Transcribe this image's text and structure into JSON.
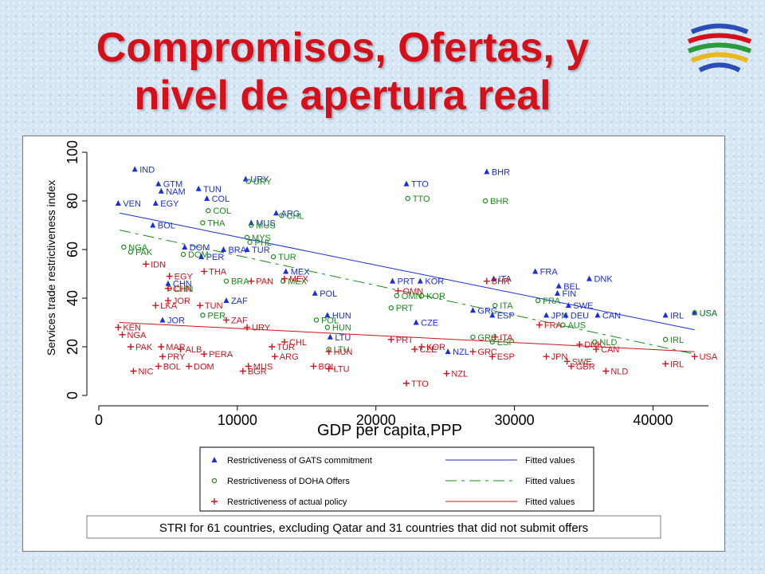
{
  "slide": {
    "title_line1": "Compromisos, Ofertas, y",
    "title_line2": "nivel de apertura real",
    "logo_icon": "wto-logo-icon"
  },
  "colors": {
    "title": "#d4101a",
    "gats": "#1a2fd6",
    "doha": "#1a8a1a",
    "actual": "#d4101a"
  },
  "chart_data": {
    "type": "scatter",
    "xlabel": "GDP per capita,PPP",
    "ylabel": "Services trade restrictiveness index",
    "xlim": [
      0,
      44000
    ],
    "ylim": [
      0,
      100
    ],
    "xticks": [
      0,
      10000,
      20000,
      30000,
      40000
    ],
    "yticks": [
      0,
      20,
      40,
      60,
      80,
      100
    ],
    "note": "STRI for 61 countries, excluding Qatar and 31 countries that did not submit offers",
    "legend": [
      {
        "series": "gats",
        "label": "Restrictiveness of GATS commitment",
        "fit_label": "Fitted values"
      },
      {
        "series": "doha",
        "label": "Restrictiveness of DOHA Offers",
        "fit_label": "Fitted values"
      },
      {
        "series": "actual",
        "label": "Restrictiveness of actual policy",
        "fit_label": "Fitted values"
      }
    ],
    "series": [
      {
        "name": "Restrictiveness of GATS commitment",
        "key": "gats",
        "marker": "triangle",
        "fit": [
          [
            1500,
            75
          ],
          [
            43000,
            27
          ]
        ],
        "points": [
          {
            "label": "IND",
            "x": 2600,
            "y": 93
          },
          {
            "label": "GTM",
            "x": 4300,
            "y": 87
          },
          {
            "label": "NAM",
            "x": 4500,
            "y": 84
          },
          {
            "label": "TUN",
            "x": 7200,
            "y": 85
          },
          {
            "label": "VEN",
            "x": 1400,
            "y": 79
          },
          {
            "label": "EGY",
            "x": 4100,
            "y": 79
          },
          {
            "label": "COL",
            "x": 7800,
            "y": 81
          },
          {
            "label": "BOL",
            "x": 3900,
            "y": 70
          },
          {
            "label": "DOM",
            "x": 6200,
            "y": 61
          },
          {
            "label": "PER",
            "x": 7400,
            "y": 57
          },
          {
            "label": "BRA",
            "x": 9000,
            "y": 60
          },
          {
            "label": "TUR",
            "x": 10700,
            "y": 60
          },
          {
            "label": "MUS",
            "x": 11000,
            "y": 71
          },
          {
            "label": "URY",
            "x": 10600,
            "y": 89
          },
          {
            "label": "ARG",
            "x": 12800,
            "y": 75
          },
          {
            "label": "MEX",
            "x": 13500,
            "y": 51
          },
          {
            "label": "POL",
            "x": 15600,
            "y": 42
          },
          {
            "label": "HUN",
            "x": 16500,
            "y": 33
          },
          {
            "label": "LTU",
            "x": 16700,
            "y": 24
          },
          {
            "label": "ZAF",
            "x": 9200,
            "y": 39
          },
          {
            "label": "CHN",
            "x": 5000,
            "y": 46
          },
          {
            "label": "JOR",
            "x": 4600,
            "y": 31
          },
          {
            "label": "TTO",
            "x": 22200,
            "y": 87
          },
          {
            "label": "PRT",
            "x": 21200,
            "y": 47
          },
          {
            "label": "KOR",
            "x": 23200,
            "y": 47
          },
          {
            "label": "CZE",
            "x": 22900,
            "y": 30
          },
          {
            "label": "GRC",
            "x": 27000,
            "y": 35
          },
          {
            "label": "NZL",
            "x": 25200,
            "y": 18
          },
          {
            "label": "BHR",
            "x": 28000,
            "y": 92
          },
          {
            "label": "ITA",
            "x": 28500,
            "y": 48
          },
          {
            "label": "ESP",
            "x": 28400,
            "y": 33
          },
          {
            "label": "FRA",
            "x": 31500,
            "y": 51
          },
          {
            "label": "BEL",
            "x": 33200,
            "y": 45
          },
          {
            "label": "FIN",
            "x": 33100,
            "y": 42
          },
          {
            "label": "DNK",
            "x": 35400,
            "y": 48
          },
          {
            "label": "JPN",
            "x": 32300,
            "y": 33
          },
          {
            "label": "SWE",
            "x": 33900,
            "y": 37
          },
          {
            "label": "DEU",
            "x": 33700,
            "y": 33
          },
          {
            "label": "CAN",
            "x": 36000,
            "y": 33
          },
          {
            "label": "IRL",
            "x": 40900,
            "y": 33
          },
          {
            "label": "USA",
            "x": 43000,
            "y": 34
          }
        ]
      },
      {
        "name": "Restrictiveness of DOHA Offers",
        "key": "doha",
        "marker": "circle",
        "fit": [
          [
            1500,
            68
          ],
          [
            43000,
            17
          ]
        ],
        "points": [
          {
            "label": "URY",
            "x": 10800,
            "y": 88
          },
          {
            "label": "COL",
            "x": 7900,
            "y": 76
          },
          {
            "label": "THA",
            "x": 7500,
            "y": 71
          },
          {
            "label": "CHL",
            "x": 13200,
            "y": 74
          },
          {
            "label": "MUS",
            "x": 11000,
            "y": 70
          },
          {
            "label": "MYS",
            "x": 10700,
            "y": 65
          },
          {
            "label": "PHL",
            "x": 10900,
            "y": 63
          },
          {
            "label": "NGA",
            "x": 1800,
            "y": 61
          },
          {
            "label": "PAK",
            "x": 2300,
            "y": 59
          },
          {
            "label": "DOM",
            "x": 6100,
            "y": 58
          },
          {
            "label": "TUR",
            "x": 12600,
            "y": 57
          },
          {
            "label": "BRA",
            "x": 9200,
            "y": 47
          },
          {
            "label": "MEX",
            "x": 13300,
            "y": 47
          },
          {
            "label": "CHN",
            "x": 5100,
            "y": 44
          },
          {
            "label": "PER",
            "x": 7500,
            "y": 33
          },
          {
            "label": "POL",
            "x": 15700,
            "y": 31
          },
          {
            "label": "HUN",
            "x": 16500,
            "y": 28
          },
          {
            "label": "LTU",
            "x": 16600,
            "y": 19
          },
          {
            "label": "TTO",
            "x": 22300,
            "y": 81
          },
          {
            "label": "OMN",
            "x": 21500,
            "y": 41
          },
          {
            "label": "KOR",
            "x": 23300,
            "y": 41
          },
          {
            "label": "PRT",
            "x": 21100,
            "y": 36
          },
          {
            "label": "GRC",
            "x": 27000,
            "y": 24
          },
          {
            "label": "ESP",
            "x": 28400,
            "y": 22
          },
          {
            "label": "BHR",
            "x": 27900,
            "y": 80
          },
          {
            "label": "ITA",
            "x": 28600,
            "y": 37
          },
          {
            "label": "FRA",
            "x": 31700,
            "y": 39
          },
          {
            "label": "NLD",
            "x": 35800,
            "y": 22
          },
          {
            "label": "AUS",
            "x": 33500,
            "y": 29
          },
          {
            "label": "IRL",
            "x": 40900,
            "y": 23
          },
          {
            "label": "USA",
            "x": 43000,
            "y": 34
          }
        ]
      },
      {
        "name": "Restrictiveness of actual policy",
        "key": "actual",
        "marker": "plus",
        "fit": [
          [
            1500,
            30
          ],
          [
            43000,
            18
          ]
        ],
        "points": [
          {
            "label": "IDN",
            "x": 3400,
            "y": 54
          },
          {
            "label": "THA",
            "x": 7600,
            "y": 51
          },
          {
            "label": "EGY",
            "x": 5100,
            "y": 49
          },
          {
            "label": "PAN",
            "x": 11000,
            "y": 47
          },
          {
            "label": "MEX",
            "x": 13400,
            "y": 48
          },
          {
            "label": "CHN",
            "x": 5000,
            "y": 44
          },
          {
            "label": "JOR",
            "x": 5000,
            "y": 39
          },
          {
            "label": "LKA",
            "x": 4100,
            "y": 37
          },
          {
            "label": "TUN",
            "x": 7300,
            "y": 37
          },
          {
            "label": "ZAF",
            "x": 9200,
            "y": 31
          },
          {
            "label": "KEN",
            "x": 1400,
            "y": 28
          },
          {
            "label": "NGA",
            "x": 1700,
            "y": 25
          },
          {
            "label": "URY",
            "x": 10700,
            "y": 28
          },
          {
            "label": "CHL",
            "x": 13400,
            "y": 22
          },
          {
            "label": "TUR",
            "x": 12500,
            "y": 20
          },
          {
            "label": "PAK",
            "x": 2300,
            "y": 20
          },
          {
            "label": "MAR",
            "x": 4500,
            "y": 20
          },
          {
            "label": "PRY",
            "x": 4600,
            "y": 16
          },
          {
            "label": "ALB",
            "x": 5900,
            "y": 19
          },
          {
            "label": "ARG",
            "x": 12700,
            "y": 16
          },
          {
            "label": "PERA",
            "x": 7600,
            "y": 17
          },
          {
            "label": "NIC",
            "x": 2500,
            "y": 10
          },
          {
            "label": "BOL",
            "x": 4300,
            "y": 12
          },
          {
            "label": "DOM",
            "x": 6500,
            "y": 12
          },
          {
            "label": "BGR",
            "x": 10400,
            "y": 10
          },
          {
            "label": "MUS",
            "x": 10800,
            "y": 12
          },
          {
            "label": "BOL",
            "x": 15500,
            "y": 12
          },
          {
            "label": "LTU",
            "x": 16600,
            "y": 11
          },
          {
            "label": "HUN",
            "x": 16600,
            "y": 18
          },
          {
            "label": "OMN",
            "x": 21600,
            "y": 43
          },
          {
            "label": "PRT",
            "x": 21100,
            "y": 23
          },
          {
            "label": "CZE",
            "x": 22800,
            "y": 19
          },
          {
            "label": "KOR",
            "x": 23300,
            "y": 20
          },
          {
            "label": "TTO",
            "x": 22200,
            "y": 5
          },
          {
            "label": "NZL",
            "x": 25100,
            "y": 9
          },
          {
            "label": "GRC",
            "x": 27000,
            "y": 18
          },
          {
            "label": "ESP",
            "x": 28400,
            "y": 16
          },
          {
            "label": "ITA",
            "x": 28600,
            "y": 24
          },
          {
            "label": "BHR",
            "x": 28000,
            "y": 47
          },
          {
            "label": "FRA",
            "x": 31800,
            "y": 29
          },
          {
            "label": "JPN",
            "x": 32300,
            "y": 16
          },
          {
            "label": "SWE",
            "x": 33800,
            "y": 14
          },
          {
            "label": "GBR",
            "x": 34100,
            "y": 12
          },
          {
            "label": "DNK",
            "x": 34700,
            "y": 21
          },
          {
            "label": "CAN",
            "x": 35900,
            "y": 19
          },
          {
            "label": "NLD",
            "x": 36600,
            "y": 10
          },
          {
            "label": "IRL",
            "x": 40900,
            "y": 13
          },
          {
            "label": "USA",
            "x": 43000,
            "y": 16
          }
        ]
      }
    ]
  }
}
